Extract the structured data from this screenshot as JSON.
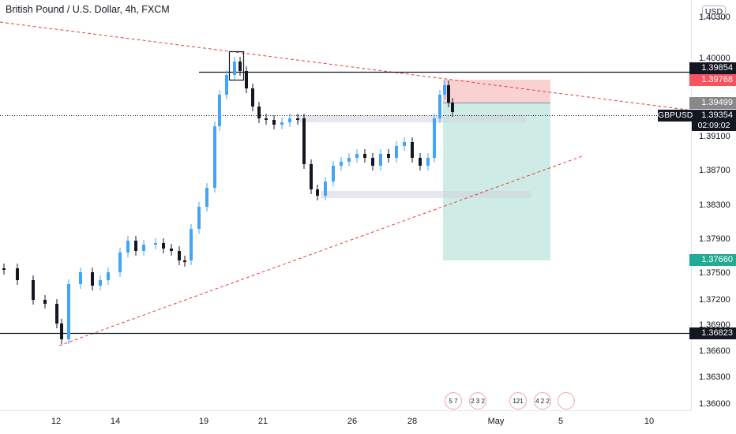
{
  "header": {
    "title": "British Pound / U.S. Dollar, 4h, FXCM"
  },
  "axis": {
    "currency": "USD",
    "ticks": [
      "1.40300",
      "1.40000",
      "1.39100",
      "1.38700",
      "1.38300",
      "1.37900",
      "1.37500",
      "1.37200",
      "1.36900",
      "1.36600",
      "1.36300",
      "1.36000"
    ],
    "dates": [
      "12",
      "14",
      "19",
      "21",
      "26",
      "28",
      "May",
      "5",
      "10"
    ]
  },
  "price_labels": {
    "resistance": "1.39854",
    "stop": "1.39768",
    "entry": "1.39499",
    "current": "1.39354",
    "target": "1.37660",
    "support": "1.36823"
  },
  "symbol": {
    "name": "GBPUSD",
    "countdown": "02:09:02"
  },
  "events": [
    {
      "count": "5 7",
      "flag": "us"
    },
    {
      "count": "2 3 2",
      "flag": "uk"
    },
    {
      "count": "121",
      "flag": "us"
    },
    {
      "count": "4 2 2",
      "flag": "uk"
    },
    {
      "count": "",
      "flag": "uk"
    }
  ],
  "colors": {
    "bull": "#42a5f5",
    "bear": "#131722",
    "stop_zone": "#f8c9c9",
    "target_zone": "#c6e7e1",
    "trendline": "#e0443f",
    "target_label": "#22ab94",
    "stop_label": "#f7525f",
    "entry_label": "#888888"
  }
}
